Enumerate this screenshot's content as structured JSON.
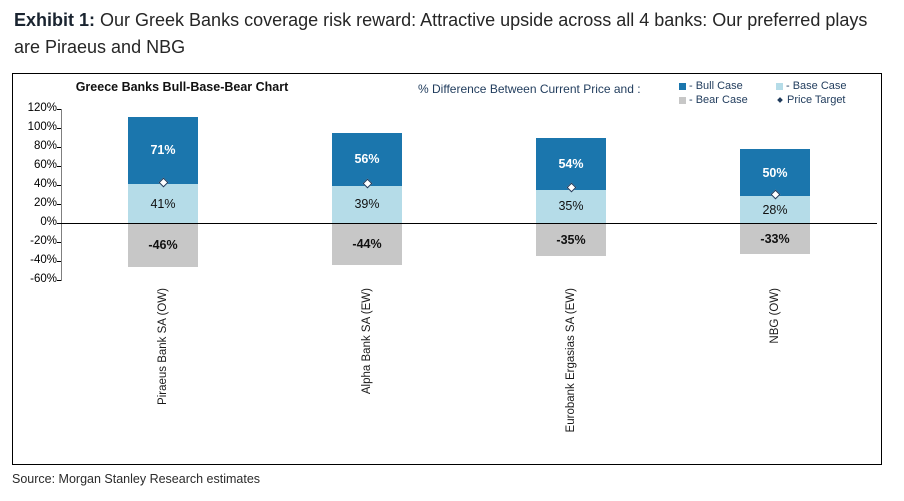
{
  "page": {
    "exhibit_label": "Exhibit 1:",
    "exhibit_title": " Our Greek Banks coverage risk reward: Attractive upside across all 4 banks: Our preferred plays are Piraeus and NBG",
    "source": "Source: Morgan Stanley Research estimates"
  },
  "chart_data": {
    "type": "bar",
    "title": "Greece Banks Bull-Base-Bear Chart",
    "legend_title": "% Difference Between Current Price and :",
    "legend_position": "top-right",
    "stacking_note": "Bull Case segment is drawn stacked on top of the Base Case segment; Bear Case extends below zero; Price Target dot sits at the Base Case level",
    "categories": [
      "Piraeus Bank SA (OW)",
      "Alpha Bank SA (EW)",
      "Eurobank Ergasias SA (EW)",
      "NBG (OW)"
    ],
    "series": [
      {
        "name": "Bull Case",
        "color": "#1b76ad",
        "values": [
          71,
          56,
          54,
          50
        ],
        "labels": [
          "71%",
          "56%",
          "54%",
          "50%"
        ]
      },
      {
        "name": "Base Case",
        "color": "#b5dce8",
        "values": [
          41,
          39,
          35,
          28
        ],
        "labels": [
          "41%",
          "39%",
          "35%",
          "28%"
        ]
      },
      {
        "name": "Bear Case",
        "color": "#c7c7c7",
        "values": [
          -46,
          -44,
          -35,
          -33
        ],
        "labels": [
          "-46%",
          "-44%",
          "-35%",
          "-33%"
        ]
      },
      {
        "name": "Price Target",
        "marker": "diamond",
        "color": "#1f3b5c",
        "values": [
          41,
          39,
          35,
          28
        ]
      }
    ],
    "value_suffix": "%",
    "ylim": [
      -60,
      120
    ],
    "yticks": [
      120,
      100,
      80,
      60,
      40,
      20,
      0,
      -20,
      -40,
      -60
    ],
    "ytick_labels": [
      "120%",
      "100%",
      "80%",
      "60%",
      "40%",
      "20%",
      "0%",
      "-20%",
      "-40%",
      "-60%"
    ],
    "grid": false,
    "legend_items": [
      {
        "label": "- Bull Case",
        "marker": "square",
        "color": "#1b76ad"
      },
      {
        "label": "- Base Case",
        "marker": "square",
        "color": "#b5dce8"
      },
      {
        "label": "- Bear Case",
        "marker": "square",
        "color": "#c7c7c7"
      },
      {
        "label": "Price Target",
        "marker": "dot",
        "color": "#1f3b5c"
      }
    ]
  }
}
